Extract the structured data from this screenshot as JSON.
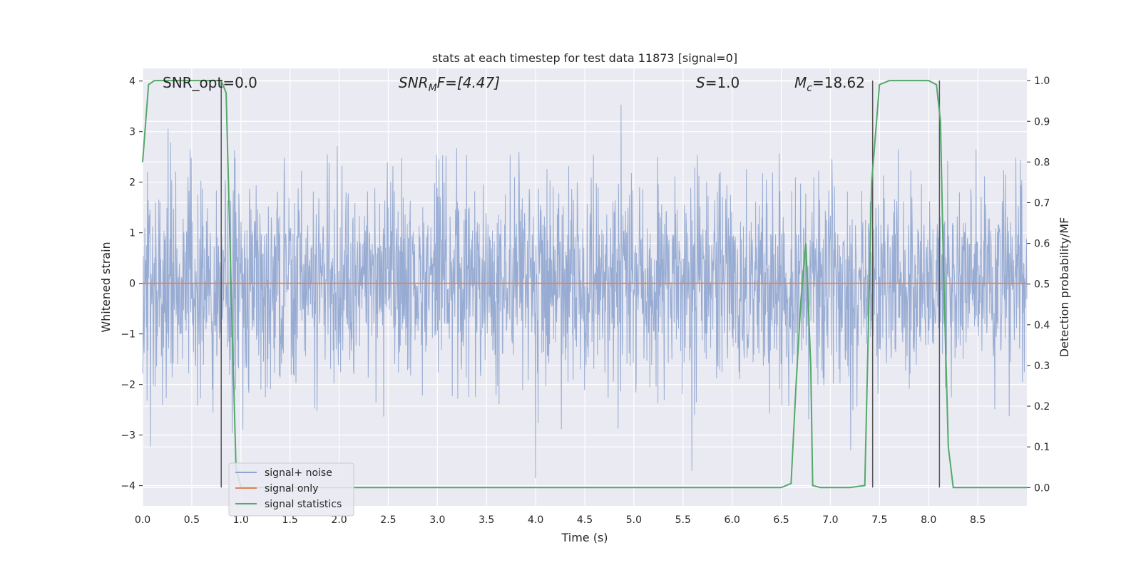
{
  "chart_data": {
    "type": "line",
    "title": "stats at each timestep for test data 11873 [signal=0]",
    "xlabel": "Time (s)",
    "ylabel": "Whitened strain",
    "y2label": "Detection probability/MF",
    "xlim": [
      0.0,
      9.0
    ],
    "ylim": [
      -4.4,
      4.25
    ],
    "y2lim": [
      -0.045,
      1.03
    ],
    "xticks": [
      "0.0",
      "0.5",
      "1.0",
      "1.5",
      "2.0",
      "2.5",
      "3.0",
      "3.5",
      "4.0",
      "4.5",
      "5.0",
      "5.5",
      "6.0",
      "6.5",
      "7.0",
      "7.5",
      "8.0",
      "8.5"
    ],
    "yticks": [
      "4",
      "3",
      "2",
      "1",
      "0",
      "−1",
      "−2",
      "−3",
      "−4"
    ],
    "y2ticks": [
      "1.0",
      "0.9",
      "0.8",
      "0.7",
      "0.6",
      "0.5",
      "0.4",
      "0.3",
      "0.2",
      "0.1",
      "0.0"
    ],
    "grid": true,
    "legend_position": "lower-left",
    "colors": {
      "noise": "#8fa5cf",
      "signal": "#dd8452",
      "stats": "#55a868",
      "vline": "#555555",
      "background": "#eaeaf2",
      "grid": "#ffffff"
    },
    "annotations": {
      "snr_opt": "SNR_opt=0.0",
      "snr_mf_main": "SNR",
      "snr_mf_sub": "M",
      "snr_mf_rest": "F=[4.47]",
      "s_main": "S",
      "s_rest": "=1.0",
      "mc_main": "M",
      "mc_sub": "c",
      "mc_rest": "=18.62"
    },
    "series": [
      {
        "name": "signal+ noise",
        "kind": "noise",
        "t_end": 9.0,
        "sigma": 1.0,
        "envelope": [
          -4.0,
          3.62
        ]
      },
      {
        "name": "signal only",
        "x": [
          0.0,
          9.0
        ],
        "values": [
          0.0,
          0.0
        ]
      },
      {
        "name": "signal statistics",
        "axis": "right",
        "x": [
          0.0,
          0.06,
          0.12,
          0.25,
          0.5,
          0.75,
          0.8,
          0.85,
          0.9,
          0.95,
          1.0,
          1.5,
          2.0,
          2.5,
          3.0,
          3.5,
          4.0,
          4.5,
          5.0,
          5.5,
          6.0,
          6.5,
          6.6,
          6.65,
          6.7,
          6.75,
          6.8,
          6.82,
          6.9,
          7.0,
          7.2,
          7.35,
          7.42,
          7.5,
          7.6,
          7.75,
          8.0,
          8.08,
          8.12,
          8.15,
          8.2,
          8.25,
          8.5,
          8.75,
          9.0
        ],
        "values": [
          0.8,
          0.99,
          1.0,
          1.0,
          1.0,
          1.0,
          1.0,
          0.97,
          0.5,
          0.05,
          0.0,
          0.0,
          0.0,
          0.0,
          0.0,
          0.0,
          0.0,
          0.0,
          0.0,
          0.0,
          0.0,
          0.0,
          0.01,
          0.25,
          0.46,
          0.6,
          0.3,
          0.005,
          0.0,
          0.0,
          0.0,
          0.005,
          0.75,
          0.99,
          1.0,
          1.0,
          1.0,
          0.99,
          0.9,
          0.55,
          0.1,
          0.0,
          0.0,
          0.0,
          0.0
        ]
      }
    ],
    "vlines": [
      0.8,
      7.43,
      8.11
    ]
  }
}
